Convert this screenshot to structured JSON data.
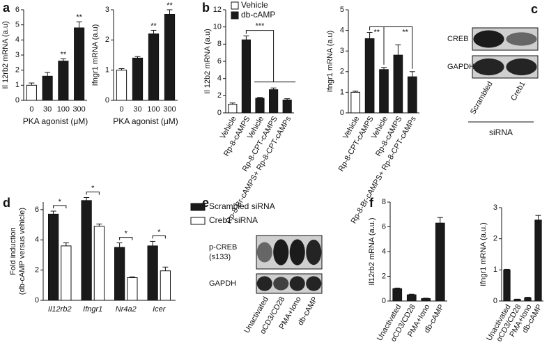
{
  "panel_labels": [
    "a",
    "b",
    "c",
    "d",
    "e",
    "f"
  ],
  "chart_data": [
    {
      "type": "bar",
      "y_label": "Il 12rb2 mRNA (a.u)",
      "x_label": "PKA agonist (μM)",
      "categories": [
        "0",
        "30",
        "100",
        "300"
      ],
      "values": [
        1.0,
        1.6,
        2.6,
        4.8
      ],
      "errors": [
        0.15,
        0.25,
        0.15,
        0.4
      ],
      "colors": [
        "#ffffff",
        "#1a1a1a",
        "#1a1a1a",
        "#1a1a1a"
      ],
      "significance": [
        null,
        null,
        "**",
        "**"
      ],
      "ylim": [
        0,
        6
      ],
      "yticks": [
        0,
        1,
        2,
        3,
        4,
        5,
        6
      ]
    },
    {
      "type": "bar",
      "y_label": "Ifngr1 mRNA (a.u)",
      "x_label": "PKA agonist (μM)",
      "categories": [
        "0",
        "30",
        "100",
        "300"
      ],
      "values": [
        1.0,
        1.4,
        2.2,
        2.85
      ],
      "errors": [
        0.05,
        0.05,
        0.12,
        0.15
      ],
      "colors": [
        "#ffffff",
        "#1a1a1a",
        "#1a1a1a",
        "#1a1a1a"
      ],
      "significance": [
        null,
        null,
        "**",
        "**"
      ],
      "ylim": [
        0,
        3
      ],
      "yticks": [
        0,
        1,
        2,
        3
      ]
    },
    {
      "type": "bar",
      "y_label": "Il 12b2 mRNA (a.u)",
      "categories": [
        "Vehicle",
        "Rp-8-cAMPS",
        "Vehicle",
        "Rp-8-CPT-cAMPS",
        "Rp-8-Br-cAMPS+ Rp-8-CPT-cAMPs"
      ],
      "values": [
        1.0,
        8.5,
        1.7,
        2.7,
        1.5
      ],
      "errors": [
        0.15,
        0.45,
        0.1,
        0.2,
        0.15
      ],
      "colors": [
        "#ffffff",
        "#1a1a1a",
        "#1a1a1a",
        "#1a1a1a",
        "#1a1a1a"
      ],
      "legend": [
        {
          "name": "Vehicle",
          "color": "#ffffff"
        },
        {
          "name": "db-cAMP",
          "color": "#1a1a1a"
        }
      ],
      "annotations": [
        "***"
      ],
      "ylim": [
        0,
        12
      ],
      "yticks": [
        0,
        2,
        4,
        6,
        8,
        10,
        12
      ]
    },
    {
      "type": "bar",
      "y_label": "Ifngr1 mRNA (a.u)",
      "categories": [
        "Vehicle",
        "Rp-8-CPT-cAMPS",
        "Vehicle",
        "Rp-8-cAMPS",
        "Rp-8-Br-cAMPS+ Rp-8-CPT-cAMPs"
      ],
      "values": [
        1.0,
        3.6,
        2.1,
        2.8,
        1.75
      ],
      "errors": [
        0.05,
        0.3,
        0.1,
        0.5,
        0.25
      ],
      "colors": [
        "#ffffff",
        "#1a1a1a",
        "#1a1a1a",
        "#1a1a1a",
        "#1a1a1a"
      ],
      "annotations": [
        "**",
        "**"
      ],
      "ylim": [
        0,
        5
      ],
      "yticks": [
        0,
        1,
        2,
        3,
        4,
        5
      ]
    },
    {
      "type": "bar",
      "y_label": [
        "Fold induction",
        "(db-cAMP versus vehicle)"
      ],
      "categories": [
        "Il12rb2",
        "Ifngr1",
        "Nr4a2",
        "Icer"
      ],
      "series": [
        {
          "name": "Scrambled siRNA",
          "color": "#1a1a1a",
          "values": [
            5.7,
            6.6,
            3.5,
            3.6
          ],
          "errors": [
            0.2,
            0.2,
            0.3,
            0.3
          ]
        },
        {
          "name": "Creb1 siRNA",
          "color": "#ffffff",
          "values": [
            3.6,
            4.9,
            1.5,
            1.95
          ],
          "errors": [
            0.2,
            0.15,
            0.05,
            0.25
          ]
        }
      ],
      "significance": [
        "*",
        "*",
        "*",
        "*"
      ],
      "ylim": [
        0,
        6.5
      ],
      "yticks": [
        0,
        2,
        4,
        6
      ]
    },
    {
      "type": "bar",
      "y_label": "Il12rb2 mRNA (a.u.)",
      "categories": [
        "Unactivated",
        "αCD3/CD28",
        "PMA+Iono",
        "db-cAMP"
      ],
      "values": [
        1.0,
        0.5,
        0.2,
        6.3
      ],
      "errors": [
        0.05,
        0.05,
        0.03,
        0.45
      ],
      "colors": [
        "#1a1a1a",
        "#1a1a1a",
        "#1a1a1a",
        "#1a1a1a"
      ],
      "ylim": [
        0,
        8
      ],
      "yticks": [
        0,
        2,
        4,
        6,
        8
      ]
    },
    {
      "type": "bar",
      "y_label": "Ifngr1 mRNA (a.u.)",
      "categories": [
        "Unactivated",
        "αCD3/CD28",
        "PMA+Iono",
        "db-cAMP"
      ],
      "values": [
        1.0,
        0.05,
        0.1,
        2.6
      ],
      "errors": [
        0.02,
        0.01,
        0.02,
        0.15
      ],
      "colors": [
        "#1a1a1a",
        "#1a1a1a",
        "#1a1a1a",
        "#1a1a1a"
      ],
      "ylim": [
        0,
        3
      ],
      "yticks": [
        0,
        1,
        2,
        3
      ]
    }
  ],
  "blots": [
    {
      "rows": [
        [
          "CREB"
        ],
        [
          "GAPDH"
        ]
      ],
      "lanes": [
        "Scrambled",
        "Creb1"
      ],
      "group_label": "siRNA"
    },
    {
      "rows": [
        [
          "p-CREB",
          "(s133)"
        ],
        [
          "GAPDH"
        ]
      ],
      "lanes": [
        "Unactivated",
        "αCD3/CD28",
        "PMA+Iono",
        "db-cAMP"
      ]
    }
  ]
}
